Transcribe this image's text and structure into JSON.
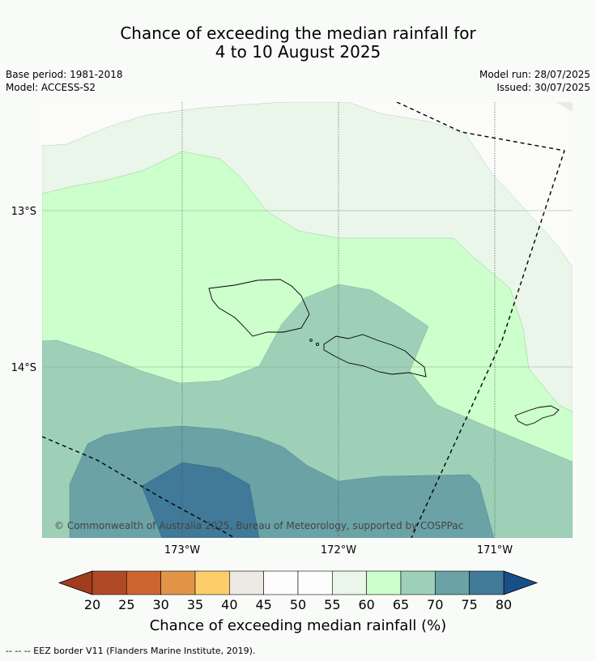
{
  "title_line1": "Chance of exceeding the median rainfall for",
  "title_line2": "4 to 10 August 2025",
  "base_period": "Base period: 1981-2018",
  "model": "Model: ACCESS-S2",
  "model_run": "Model run: 28/07/2025",
  "issued": "Issued: 30/07/2025",
  "credit": "© Commonwealth of Australia 2025, Bureau of Meteorology, supported by COSPPac",
  "lon_labels": [
    "173°W",
    "172°W",
    "171°W"
  ],
  "lat_labels": [
    "13°S",
    "14°S"
  ],
  "colorbar": {
    "label": "Chance of exceeding median rainfall (%)",
    "ticks": [
      "20",
      "25",
      "30",
      "35",
      "40",
      "45",
      "50",
      "55",
      "60",
      "65",
      "70",
      "75",
      "80"
    ],
    "colors": [
      "#b04a26",
      "#cd6533",
      "#e29446",
      "#fdcd6b",
      "#ece9e5",
      "#fdfdfd",
      "#fdfdfd",
      "#eaf6e9",
      "#ccffcc",
      "#9ed0b8",
      "#6aa2a6",
      "#417998"
    ],
    "under_color": "#a13d1c",
    "over_color": "#174f87"
  },
  "footer": "--  --  -- EEZ border V11 (Flanders Marine Institute, 2019)."
}
